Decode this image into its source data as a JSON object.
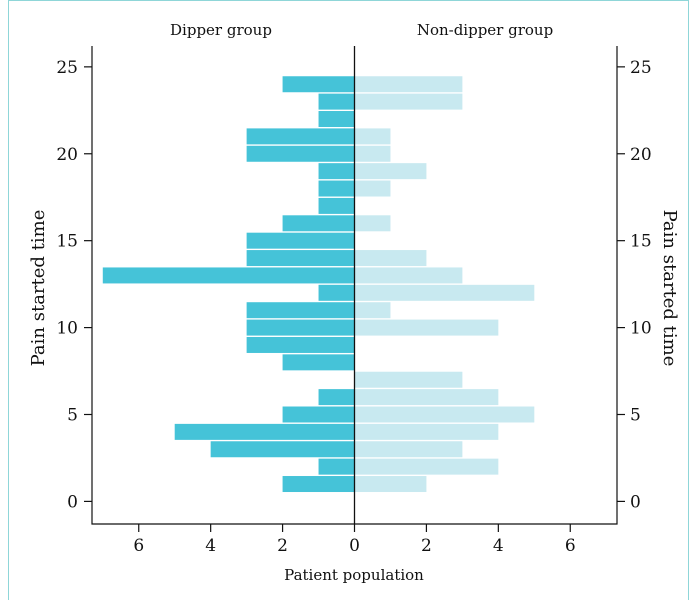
{
  "chart_data": {
    "type": "bar",
    "orientation": "horizontal",
    "layout": "back-to-back",
    "left_group_label": "Dipper group",
    "right_group_label": "Non-dipper group",
    "xlabel": "Patient population",
    "ylabel_left": "Pain started time",
    "ylabel_right": "Pain started time",
    "xlim": [
      -7.3,
      7.3
    ],
    "ylim": [
      -1.3,
      26.2
    ],
    "x_ticks": [
      -6,
      -4,
      -2,
      0,
      2,
      4,
      6
    ],
    "x_tick_labels": [
      "6",
      "4",
      "2",
      "0",
      "2",
      "4",
      "6"
    ],
    "y_ticks": [
      0,
      5,
      10,
      15,
      20,
      25
    ],
    "hours": [
      1,
      2,
      3,
      4,
      5,
      6,
      7,
      8,
      9,
      10,
      11,
      12,
      13,
      14,
      15,
      16,
      17,
      18,
      19,
      20,
      21,
      22,
      23,
      24
    ],
    "series": [
      {
        "name": "Dipper group",
        "color": "#45c3d8",
        "values": [
          2,
          1,
          4,
          5,
          2,
          1,
          0,
          2,
          3,
          3,
          3,
          1,
          7,
          3,
          3,
          2,
          1,
          1,
          1,
          3,
          3,
          1,
          1,
          2
        ]
      },
      {
        "name": "Non-dipper group",
        "color": "#c8e9f0",
        "values": [
          2,
          4,
          3,
          4,
          5,
          4,
          3,
          0,
          0,
          4,
          1,
          5,
          3,
          2,
          0,
          1,
          0,
          1,
          2,
          1,
          1,
          0,
          3,
          3
        ]
      }
    ]
  }
}
